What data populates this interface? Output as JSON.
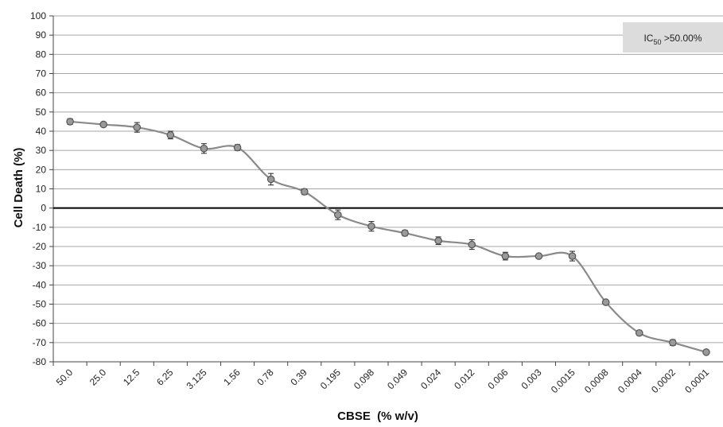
{
  "chart_data": {
    "type": "line",
    "xlabel": "CBSE  (% w/v)",
    "ylabel": "Cell Death (%)",
    "ylim": [
      -80,
      100
    ],
    "ytick_step": 10,
    "grid": true,
    "categories": [
      "50.0",
      "25.0",
      "12.5",
      "6.25",
      "3.125",
      "1.56",
      "0.78",
      "0.39",
      "0.195",
      "0.098",
      "0.049",
      "0.024",
      "0.012",
      "0.006",
      "0.003",
      "0.0015",
      "0.0008",
      "0.0004",
      "0.0002",
      "0.0001"
    ],
    "series": [
      {
        "values": [
          45,
          43.5,
          42,
          38,
          31,
          31.5,
          15,
          8.5,
          -3.5,
          -9.5,
          -13,
          -17,
          -19,
          -25,
          -25,
          -25,
          -49,
          -65,
          -70,
          -75
        ],
        "error": [
          1.5,
          1,
          2.5,
          2,
          2.5,
          1.5,
          3,
          1.5,
          2.5,
          2.5,
          1.5,
          2,
          2.5,
          2,
          1,
          2.5,
          1,
          1,
          1.5,
          1
        ]
      }
    ],
    "reference_line": 0,
    "annotation": {
      "prefix": "IC",
      "subscript": "50",
      "suffix": " >50.00%"
    },
    "colors": {
      "line": "#8a8a8a",
      "marker_fill": "#9a9a9a",
      "marker_stroke": "#555555",
      "grid": "#a6a6a6",
      "zero_line": "#000000",
      "annotation_bg": "#dcdcdc"
    }
  }
}
